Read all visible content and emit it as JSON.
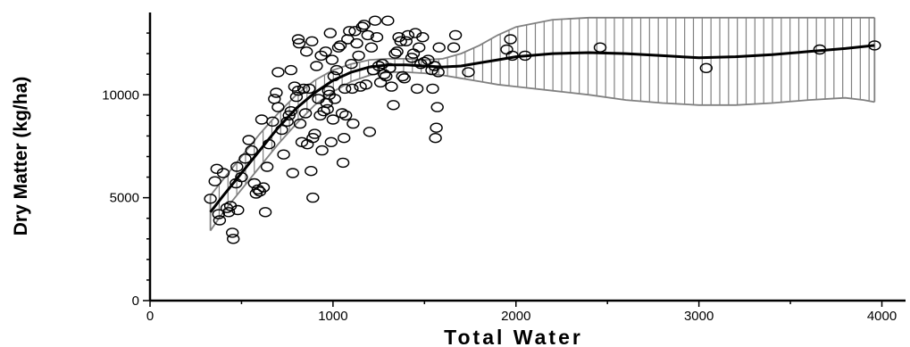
{
  "chart_data": {
    "type": "scatter",
    "title": "",
    "xlabel": "Total Water",
    "ylabel": "Dry Matter (kg/ha)",
    "xlim": [
      0,
      4100
    ],
    "ylim": [
      0,
      14000
    ],
    "x_ticks": [
      0,
      1000,
      2000,
      3000,
      4000
    ],
    "x_tick_labels": [
      "0",
      "1000",
      "2000",
      "3000",
      "4000"
    ],
    "y_ticks": [
      0,
      5000,
      10000
    ],
    "y_tick_labels": [
      "0",
      "5000",
      "10000"
    ],
    "grid": false,
    "legend": "none",
    "colors": {
      "points": "#000000",
      "fit": "#000000",
      "band": "#808080"
    },
    "series": [
      {
        "kind": "points",
        "points": [
          [
            330,
            4950
          ],
          [
            355,
            5800
          ],
          [
            365,
            6400
          ],
          [
            375,
            4200
          ],
          [
            380,
            3900
          ],
          [
            400,
            6200
          ],
          [
            420,
            4500
          ],
          [
            430,
            4300
          ],
          [
            440,
            4600
          ],
          [
            450,
            3300
          ],
          [
            455,
            3000
          ],
          [
            470,
            5700
          ],
          [
            475,
            6500
          ],
          [
            480,
            4400
          ],
          [
            500,
            6000
          ],
          [
            520,
            6900
          ],
          [
            540,
            7800
          ],
          [
            555,
            7300
          ],
          [
            570,
            5700
          ],
          [
            580,
            5200
          ],
          [
            590,
            5400
          ],
          [
            600,
            5300
          ],
          [
            610,
            8800
          ],
          [
            620,
            5500
          ],
          [
            630,
            4300
          ],
          [
            640,
            6500
          ],
          [
            650,
            7600
          ],
          [
            670,
            8700
          ],
          [
            680,
            9800
          ],
          [
            690,
            10100
          ],
          [
            700,
            9400
          ],
          [
            700,
            11100
          ],
          [
            720,
            8300
          ],
          [
            730,
            7100
          ],
          [
            750,
            8700
          ],
          [
            760,
            9000
          ],
          [
            770,
            9200
          ],
          [
            770,
            11200
          ],
          [
            780,
            6200
          ],
          [
            790,
            10400
          ],
          [
            800,
            9900
          ],
          [
            810,
            10200
          ],
          [
            810,
            12700
          ],
          [
            815,
            12500
          ],
          [
            820,
            8600
          ],
          [
            830,
            7700
          ],
          [
            840,
            10300
          ],
          [
            850,
            9100
          ],
          [
            855,
            12100
          ],
          [
            860,
            7600
          ],
          [
            870,
            10300
          ],
          [
            880,
            6300
          ],
          [
            885,
            12600
          ],
          [
            890,
            7900
          ],
          [
            890,
            5000
          ],
          [
            900,
            8100
          ],
          [
            910,
            11400
          ],
          [
            920,
            9800
          ],
          [
            930,
            9000
          ],
          [
            935,
            11900
          ],
          [
            940,
            7300
          ],
          [
            950,
            9200
          ],
          [
            960,
            12100
          ],
          [
            965,
            9600
          ],
          [
            970,
            9300
          ],
          [
            975,
            10200
          ],
          [
            980,
            10000
          ],
          [
            985,
            13000
          ],
          [
            990,
            7700
          ],
          [
            995,
            11700
          ],
          [
            1000,
            8800
          ],
          [
            1005,
            10900
          ],
          [
            1010,
            9800
          ],
          [
            1020,
            11200
          ],
          [
            1030,
            12300
          ],
          [
            1040,
            12400
          ],
          [
            1050,
            9100
          ],
          [
            1055,
            6700
          ],
          [
            1060,
            7900
          ],
          [
            1065,
            10300
          ],
          [
            1070,
            9000
          ],
          [
            1080,
            12700
          ],
          [
            1090,
            13100
          ],
          [
            1100,
            11500
          ],
          [
            1105,
            10300
          ],
          [
            1110,
            8600
          ],
          [
            1120,
            13100
          ],
          [
            1130,
            12500
          ],
          [
            1140,
            11900
          ],
          [
            1150,
            10400
          ],
          [
            1160,
            13300
          ],
          [
            1170,
            13400
          ],
          [
            1180,
            10500
          ],
          [
            1190,
            12900
          ],
          [
            1200,
            8200
          ],
          [
            1210,
            12300
          ],
          [
            1220,
            11200
          ],
          [
            1230,
            13600
          ],
          [
            1240,
            12800
          ],
          [
            1250,
            11400
          ],
          [
            1260,
            10600
          ],
          [
            1270,
            11500
          ],
          [
            1280,
            11000
          ],
          [
            1290,
            10900
          ],
          [
            1300,
            13600
          ],
          [
            1310,
            11300
          ],
          [
            1320,
            10400
          ],
          [
            1330,
            9500
          ],
          [
            1340,
            12000
          ],
          [
            1350,
            12100
          ],
          [
            1360,
            12800
          ],
          [
            1370,
            12600
          ],
          [
            1380,
            10900
          ],
          [
            1390,
            10800
          ],
          [
            1400,
            12600
          ],
          [
            1410,
            12900
          ],
          [
            1430,
            11800
          ],
          [
            1440,
            12000
          ],
          [
            1450,
            13000
          ],
          [
            1460,
            10300
          ],
          [
            1470,
            12300
          ],
          [
            1480,
            11500
          ],
          [
            1490,
            12800
          ],
          [
            1500,
            11600
          ],
          [
            1520,
            11700
          ],
          [
            1540,
            11200
          ],
          [
            1545,
            10300
          ],
          [
            1555,
            11400
          ],
          [
            1560,
            7900
          ],
          [
            1565,
            8400
          ],
          [
            1570,
            9400
          ],
          [
            1575,
            11100
          ],
          [
            1580,
            12300
          ],
          [
            1660,
            12300
          ],
          [
            1670,
            12900
          ],
          [
            1740,
            11100
          ],
          [
            1950,
            12200
          ],
          [
            1970,
            12700
          ],
          [
            1980,
            11900
          ],
          [
            2050,
            11900
          ],
          [
            2460,
            12300
          ],
          [
            3040,
            11300
          ],
          [
            3660,
            12200
          ],
          [
            3960,
            12400
          ]
        ]
      },
      {
        "kind": "fit",
        "points": [
          [
            330,
            4300
          ],
          [
            400,
            5100
          ],
          [
            500,
            6200
          ],
          [
            600,
            7300
          ],
          [
            700,
            8400
          ],
          [
            800,
            9350
          ],
          [
            900,
            10100
          ],
          [
            1000,
            10700
          ],
          [
            1100,
            11100
          ],
          [
            1200,
            11350
          ],
          [
            1300,
            11450
          ],
          [
            1400,
            11450
          ],
          [
            1500,
            11400
          ],
          [
            1600,
            11350
          ],
          [
            1700,
            11400
          ],
          [
            1800,
            11550
          ],
          [
            1900,
            11700
          ],
          [
            2000,
            11850
          ],
          [
            2200,
            12000
          ],
          [
            2400,
            12050
          ],
          [
            2600,
            12000
          ],
          [
            2800,
            11900
          ],
          [
            3000,
            11800
          ],
          [
            3200,
            11850
          ],
          [
            3400,
            11950
          ],
          [
            3600,
            12100
          ],
          [
            3800,
            12250
          ],
          [
            3960,
            12400
          ]
        ]
      },
      {
        "kind": "band-upper",
        "points": [
          [
            330,
            5100
          ],
          [
            400,
            5900
          ],
          [
            500,
            7000
          ],
          [
            600,
            8100
          ],
          [
            700,
            9100
          ],
          [
            800,
            10000
          ],
          [
            900,
            10700
          ],
          [
            1000,
            11200
          ],
          [
            1100,
            11500
          ],
          [
            1200,
            11700
          ],
          [
            1300,
            11750
          ],
          [
            1400,
            11750
          ],
          [
            1500,
            11700
          ],
          [
            1600,
            11750
          ],
          [
            1700,
            12000
          ],
          [
            1800,
            12400
          ],
          [
            1900,
            12900
          ],
          [
            2000,
            13300
          ],
          [
            2200,
            13650
          ],
          [
            2400,
            13750
          ],
          [
            2600,
            13750
          ],
          [
            3000,
            13750
          ],
          [
            3400,
            13750
          ],
          [
            3800,
            13750
          ],
          [
            3960,
            13750
          ]
        ]
      },
      {
        "kind": "band-lower",
        "points": [
          [
            330,
            3400
          ],
          [
            400,
            4300
          ],
          [
            500,
            5400
          ],
          [
            600,
            6500
          ],
          [
            700,
            7600
          ],
          [
            800,
            8600
          ],
          [
            900,
            9500
          ],
          [
            1000,
            10150
          ],
          [
            1100,
            10650
          ],
          [
            1200,
            10950
          ],
          [
            1300,
            11100
          ],
          [
            1400,
            11100
          ],
          [
            1500,
            11050
          ],
          [
            1600,
            10950
          ],
          [
            1700,
            10800
          ],
          [
            1800,
            10650
          ],
          [
            1900,
            10500
          ],
          [
            2000,
            10400
          ],
          [
            2200,
            10200
          ],
          [
            2400,
            10000
          ],
          [
            2600,
            9750
          ],
          [
            2800,
            9600
          ],
          [
            3000,
            9500
          ],
          [
            3200,
            9500
          ],
          [
            3400,
            9600
          ],
          [
            3600,
            9750
          ],
          [
            3800,
            9850
          ],
          [
            3900,
            9750
          ],
          [
            3960,
            9650
          ]
        ]
      }
    ]
  }
}
